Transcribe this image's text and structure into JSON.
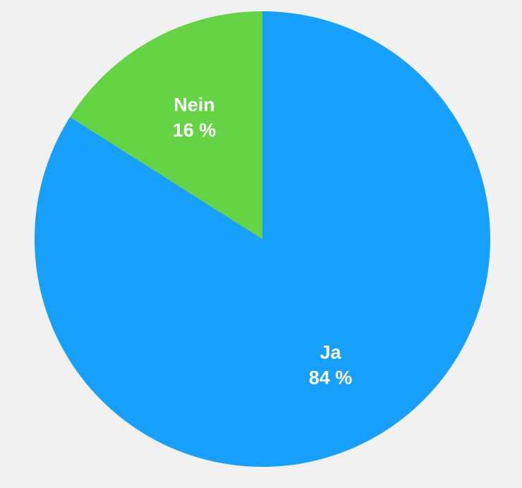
{
  "chart_data": {
    "type": "pie",
    "title": "",
    "start_angle_deg": 0,
    "direction": "clockwise",
    "slices": [
      {
        "label": "Ja",
        "value": 84,
        "value_label": "84 %",
        "color": "#179ffc"
      },
      {
        "label": "Nein",
        "value": 16,
        "value_label": "16 %",
        "color": "#64d444"
      }
    ],
    "legend": "none",
    "background_color": "#f1f1f2"
  }
}
